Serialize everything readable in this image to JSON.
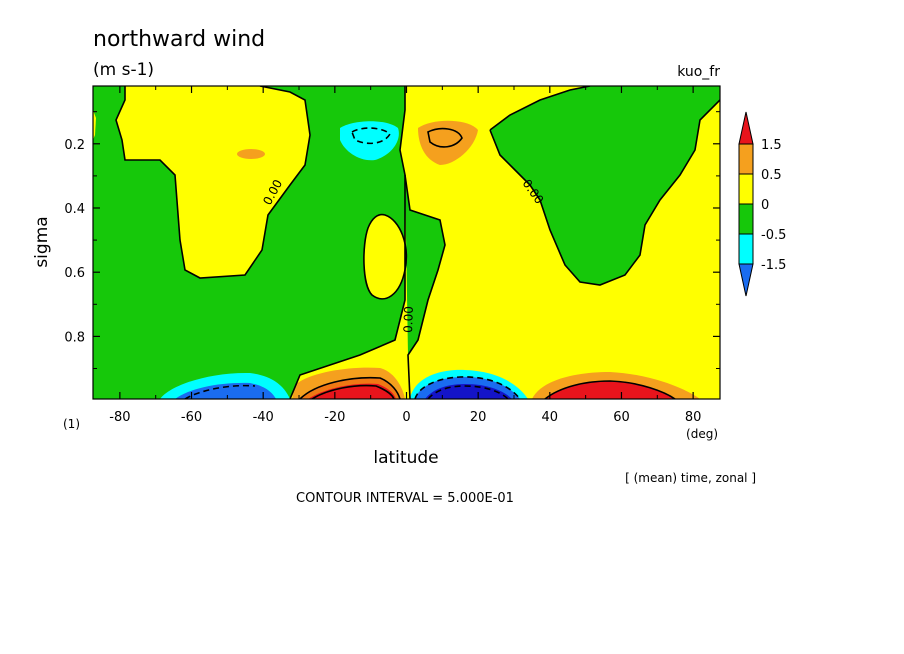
{
  "chart_data": {
    "type": "heatmap",
    "title": "northward wind",
    "units": "(m s-1)",
    "dataset": "kuo_fr",
    "xlabel": "latitude",
    "ylabel": "sigma",
    "x_unit": "(deg)",
    "panel_label": "(1)",
    "averaging_note": "[ (mean) time, zonal ]",
    "contour_interval": "CONTOUR INTERVAL = 5.000E-01",
    "xlim": [
      -87.5,
      87.5
    ],
    "ylim": [
      0.995,
      0.02
    ],
    "x_ticks": [
      -80,
      -60,
      -40,
      -20,
      0,
      20,
      40,
      60,
      80
    ],
    "x_tick_labels": [
      "-80",
      "-60",
      "-40",
      "-20",
      "0",
      "20",
      "40",
      "60",
      "80"
    ],
    "y_ticks": [
      0.2,
      0.4,
      0.6,
      0.8
    ],
    "y_tick_labels": [
      "0.2",
      "0.4",
      "0.6",
      "0.8"
    ],
    "zero_contour_labels": [
      {
        "text": "0.00",
        "x": -38,
        "sigma": 0.38
      },
      {
        "text": "0.00",
        "x": 36,
        "sigma": 0.33
      },
      {
        "text": "0.00",
        "x": 0,
        "sigma": 0.74
      }
    ],
    "colorbar": {
      "levels": [
        "1.5",
        "0.5",
        "0",
        "-0.5",
        "-1.5"
      ],
      "colors": [
        "#e8141c",
        "#f5a01e",
        "#ffff00",
        "#16c80a",
        "#00ffff",
        "#1a6cf0"
      ]
    },
    "fill_colors": {
      "negative_1": "#00ffff",
      "negative_0": "#16c80a",
      "positive_0": "#ffff00",
      "positive_1": "#f5a01e",
      "positive_2": "#f07814",
      "positive_3": "#e8141c",
      "negative_2": "#1a6cf0",
      "negative_3": "#1414c8"
    }
  }
}
